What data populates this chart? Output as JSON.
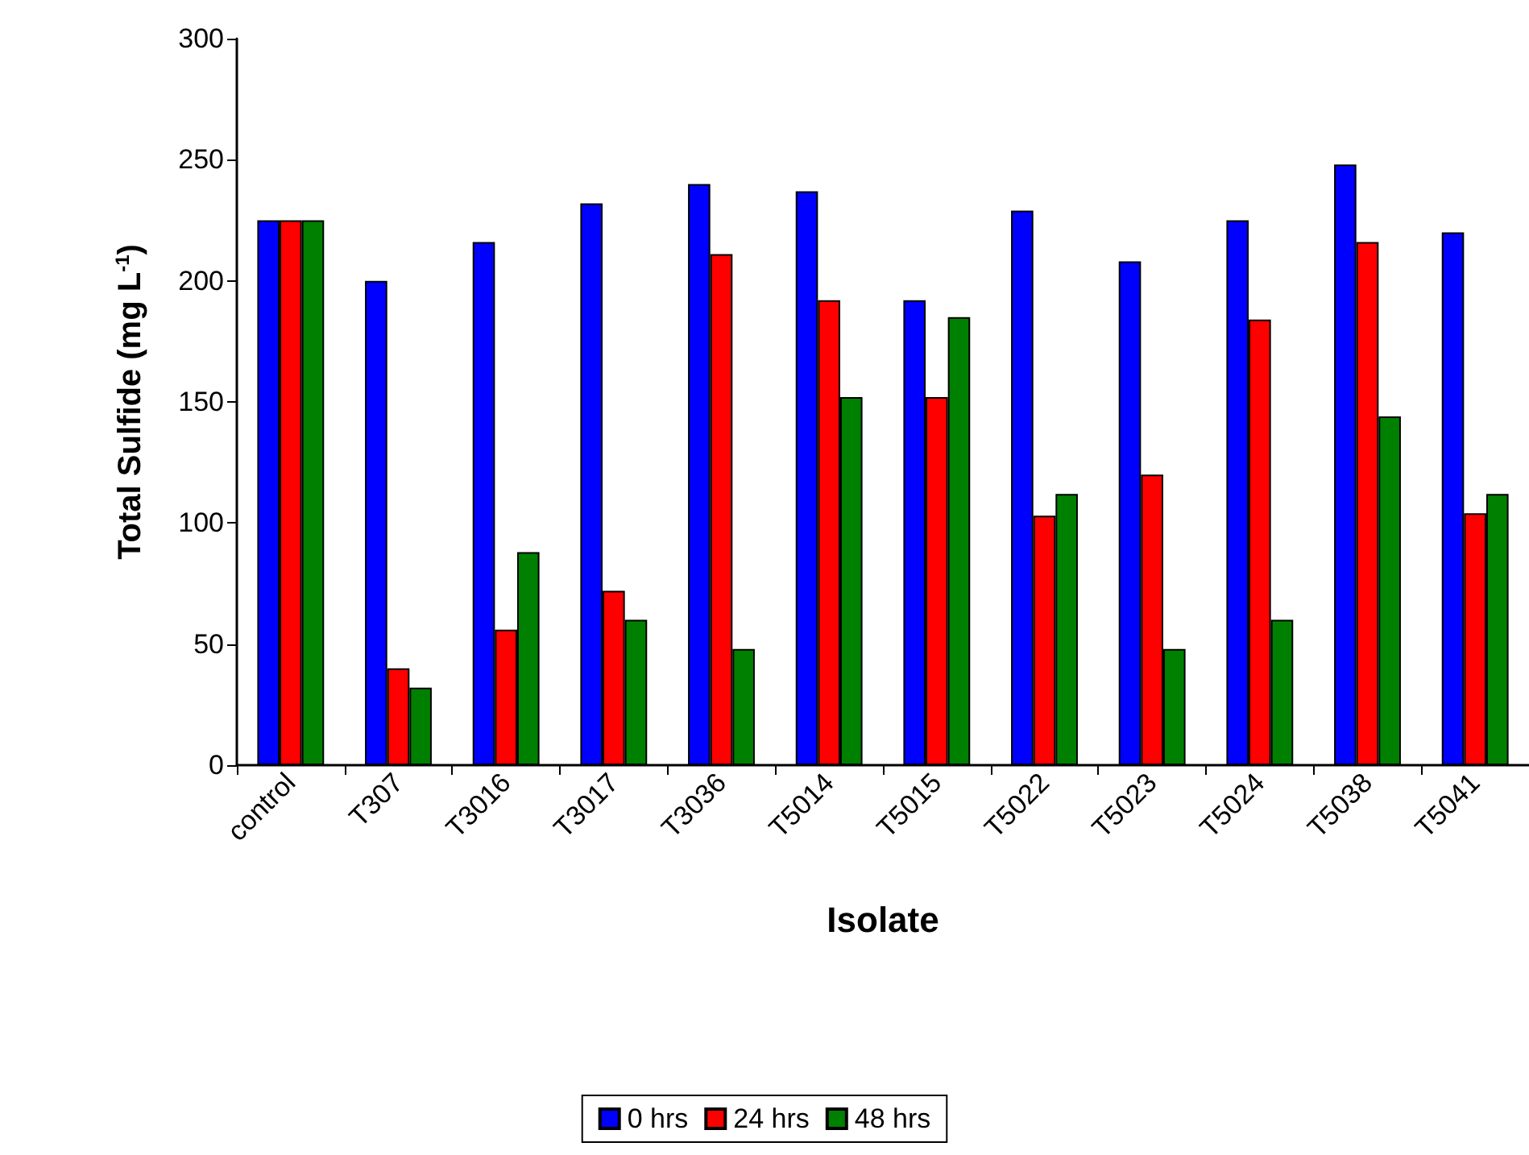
{
  "chart_data": {
    "type": "bar",
    "xlabel": "Isolate",
    "ylabel": "Total Sulfide (mg L$^{-1}$)",
    "categories": [
      "control",
      "T307",
      "T3016",
      "T3017",
      "T3036",
      "T5014",
      "T5015",
      "T5022",
      "T5023",
      "T5024",
      "T5038",
      "T5041"
    ],
    "series": [
      {
        "name": "0 hrs",
        "color": "#0000ff",
        "values": [
          225,
          200,
          216,
          232,
          240,
          237,
          192,
          229,
          208,
          225,
          248,
          220
        ]
      },
      {
        "name": "24 hrs",
        "color": "#ff0000",
        "values": [
          225,
          40,
          56,
          72,
          211,
          192,
          152,
          103,
          120,
          184,
          216,
          104
        ]
      },
      {
        "name": "48 hrs",
        "color": "#008000",
        "values": [
          225,
          32,
          88,
          60,
          48,
          152,
          185,
          112,
          48,
          60,
          144,
          112
        ]
      }
    ],
    "ylim": [
      0,
      300
    ],
    "yticks": [
      0,
      50,
      100,
      150,
      200,
      250,
      300
    ],
    "grid": false,
    "legend": "bottom"
  }
}
